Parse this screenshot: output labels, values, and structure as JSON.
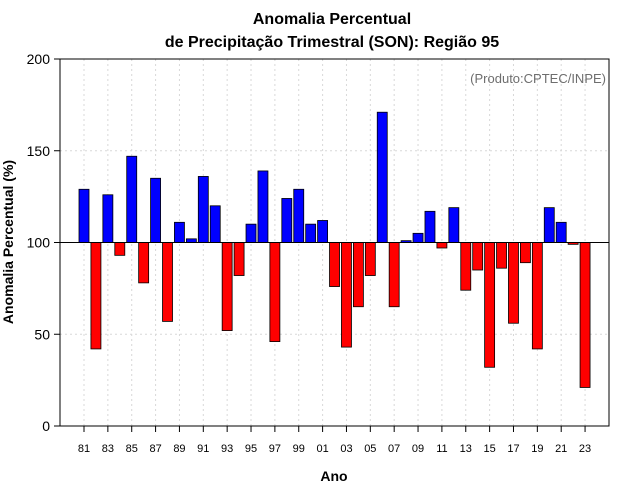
{
  "chart_data": {
    "type": "bar",
    "title_line1": "Anomalia Percentual",
    "title_line2": "de Precipitação Trimestral (SON): Região 95",
    "credit": "(Produto:CPTEC/INPE)",
    "xlabel": "Ano",
    "ylabel": "Anomalia Percentual (%)",
    "ylim": [
      0,
      200
    ],
    "yticks": [
      0,
      50,
      100,
      150,
      200
    ],
    "baseline": 100,
    "grid": true,
    "colors": {
      "above": "#0000ff",
      "below": "#ff0000"
    },
    "xtick_labels": [
      "81",
      "83",
      "85",
      "87",
      "89",
      "91",
      "93",
      "95",
      "97",
      "99",
      "01",
      "03",
      "05",
      "07",
      "09",
      "11",
      "13",
      "15",
      "17",
      "19",
      "21",
      "23"
    ],
    "categories": [
      "1981",
      "1982",
      "1983",
      "1984",
      "1985",
      "1986",
      "1987",
      "1988",
      "1989",
      "1990",
      "1991",
      "1992",
      "1993",
      "1994",
      "1995",
      "1996",
      "1997",
      "1998",
      "1999",
      "2000",
      "2001",
      "2002",
      "2003",
      "2004",
      "2005",
      "2006",
      "2007",
      "2008",
      "2009",
      "2010",
      "2011",
      "2012",
      "2013",
      "2014",
      "2015",
      "2016",
      "2017",
      "2018",
      "2019",
      "2020",
      "2021",
      "2022",
      "2023"
    ],
    "values": [
      129,
      42,
      126,
      93,
      147,
      78,
      135,
      57,
      111,
      102,
      136,
      120,
      52,
      82,
      110,
      139,
      46,
      124,
      129,
      110,
      112,
      76,
      43,
      65,
      82,
      171,
      65,
      101,
      105,
      117,
      97,
      119,
      74,
      85,
      32,
      86,
      56,
      89,
      42,
      119,
      111,
      99,
      21
    ]
  }
}
